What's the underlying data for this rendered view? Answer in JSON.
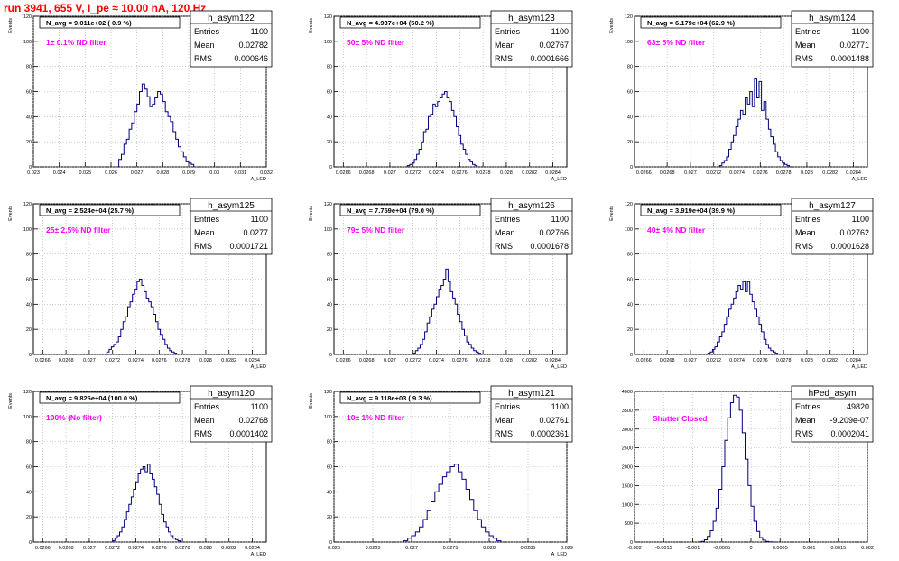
{
  "page": {
    "title": "run 3941,   655 V, I_pe ≈ 10.00 nA, 120 Hz",
    "title_color": "#ff0000",
    "label_color": "#ff00ff",
    "hist_color": "#000080"
  },
  "chart_data": [
    {
      "type": "histogram",
      "name": "h_asym122",
      "stats": {
        "entries_label": "Entries",
        "entries": "1100",
        "mean_label": "Mean",
        "mean": "0.02782",
        "rms_label": "RMS",
        "rms": "0.000646"
      },
      "navg": "N_avg = 9.011e+02 ( 0.9 %)",
      "filter": "1± 0.1% ND filter",
      "ylabel": "Events",
      "xlabel": "A_LED",
      "xlim": [
        0.023,
        0.032
      ],
      "xticks": [
        0.023,
        0.024,
        0.025,
        0.026,
        0.027,
        0.028,
        0.029,
        0.03,
        0.031,
        0.032
      ],
      "xtick_labels": [
        "0.023",
        "0.024",
        "0.025",
        "0.026",
        "0.027",
        "0.028",
        "0.029",
        "0.03",
        "0.031",
        "0.032"
      ],
      "ylim": [
        0,
        120
      ],
      "yticks": [
        0,
        20,
        40,
        60,
        80,
        100,
        120
      ],
      "ytick_labels": [
        "0",
        "20",
        "40",
        "60",
        "80",
        "100",
        "120"
      ],
      "bins": {
        "lo": 0.0262,
        "width": 0.0001,
        "values": [
          0,
          6,
          10,
          18,
          22,
          30,
          35,
          44,
          50,
          60,
          66,
          62,
          56,
          48,
          50,
          55,
          60,
          58,
          52,
          44,
          40,
          36,
          28,
          22,
          16,
          12,
          8,
          4,
          3,
          2
        ]
      }
    },
    {
      "type": "histogram",
      "name": "h_asym123",
      "stats": {
        "entries_label": "Entries",
        "entries": "1100",
        "mean_label": "Mean",
        "mean": "0.02767",
        "rms_label": "RMS",
        "rms": "0.0001666"
      },
      "navg": "N_avg = 4.937e+04 (50.2 %)",
      "filter": "50± 5% ND filter",
      "ylabel": "Events",
      "xlabel": "A_LED",
      "xlim": [
        0.02652,
        0.02852
      ],
      "xticks": [
        0.0266,
        0.0268,
        0.027,
        0.0272,
        0.0274,
        0.0276,
        0.0278,
        0.028,
        0.0282,
        0.0284
      ],
      "xtick_labels": [
        "0.0266",
        "0.0268",
        "0.027",
        "0.0272",
        "0.0274",
        "0.0276",
        "0.0278",
        "0.028",
        "0.0282",
        "0.0284"
      ],
      "ylim": [
        0,
        120
      ],
      "yticks": [
        0,
        20,
        40,
        60,
        80,
        100,
        120
      ],
      "ytick_labels": [
        "0",
        "20",
        "40",
        "60",
        "80",
        "100",
        "120"
      ],
      "bins": {
        "lo": 0.02715,
        "width": 2e-05,
        "values": [
          1,
          2,
          3,
          6,
          10,
          14,
          20,
          28,
          30,
          40,
          42,
          50,
          48,
          52,
          55,
          58,
          60,
          55,
          52,
          45,
          40,
          32,
          25,
          18,
          14,
          10,
          6,
          4,
          2,
          1
        ]
      }
    },
    {
      "type": "histogram",
      "name": "h_asym124",
      "stats": {
        "entries_label": "Entries",
        "entries": "1100",
        "mean_label": "Mean",
        "mean": "0.02771",
        "rms_label": "RMS",
        "rms": "0.0001488"
      },
      "navg": "N_avg = 6.179e+04 (62.9 %)",
      "filter": "63± 5% ND filter",
      "ylabel": "Events",
      "xlabel": "A_LED",
      "xlim": [
        0.02652,
        0.02852
      ],
      "xticks": [
        0.0266,
        0.0268,
        0.027,
        0.0272,
        0.0274,
        0.0276,
        0.0278,
        0.028,
        0.0282,
        0.0284
      ],
      "xtick_labels": [
        "0.0266",
        "0.0268",
        "0.027",
        "0.0272",
        "0.0274",
        "0.0276",
        "0.0278",
        "0.028",
        "0.0282",
        "0.0284"
      ],
      "ylim": [
        0,
        120
      ],
      "yticks": [
        0,
        20,
        40,
        60,
        80,
        100,
        120
      ],
      "ytick_labels": [
        "0",
        "20",
        "40",
        "60",
        "80",
        "100",
        "120"
      ],
      "bins": {
        "lo": 0.02725,
        "width": 2e-05,
        "values": [
          1,
          3,
          5,
          8,
          14,
          20,
          25,
          32,
          38,
          45,
          42,
          55,
          50,
          60,
          48,
          70,
          55,
          68,
          45,
          52,
          38,
          30,
          24,
          18,
          12,
          8,
          5,
          3,
          2,
          1
        ]
      }
    },
    {
      "type": "histogram",
      "name": "h_asym125",
      "stats": {
        "entries_label": "Entries",
        "entries": "1100",
        "mean_label": "Mean",
        "mean": "0.0277",
        "rms_label": "RMS",
        "rms": "0.0001721"
      },
      "navg": "N_avg = 2.524e+04 (25.7 %)",
      "filter": "25± 2.5% ND filter",
      "ylabel": "Events",
      "xlabel": "A_LED",
      "xlim": [
        0.02652,
        0.02852
      ],
      "xticks": [
        0.0266,
        0.0268,
        0.027,
        0.0272,
        0.0274,
        0.0276,
        0.0278,
        0.028,
        0.0282,
        0.0284
      ],
      "xtick_labels": [
        "0.0266",
        "0.0268",
        "0.027",
        "0.0272",
        "0.0274",
        "0.0276",
        "0.0278",
        "0.028",
        "0.0282",
        "0.0284"
      ],
      "ylim": [
        0,
        120
      ],
      "yticks": [
        0,
        20,
        40,
        60,
        80,
        100,
        120
      ],
      "ytick_labels": [
        "0",
        "20",
        "40",
        "60",
        "80",
        "100",
        "120"
      ],
      "bins": {
        "lo": 0.02715,
        "width": 2e-05,
        "values": [
          2,
          4,
          6,
          8,
          10,
          14,
          20,
          26,
          30,
          38,
          42,
          48,
          52,
          58,
          60,
          55,
          50,
          45,
          42,
          38,
          32,
          26,
          20,
          16,
          12,
          8,
          5,
          3,
          2,
          1
        ]
      }
    },
    {
      "type": "histogram",
      "name": "h_asym126",
      "stats": {
        "entries_label": "Entries",
        "entries": "1100",
        "mean_label": "Mean",
        "mean": "0.02766",
        "rms_label": "RMS",
        "rms": "0.0001678"
      },
      "navg": "N_avg = 7.759e+04 (79.0 %)",
      "filter": "79± 5% ND filter",
      "ylabel": "Events",
      "xlabel": "A_LED",
      "xlim": [
        0.02652,
        0.02852
      ],
      "xticks": [
        0.0266,
        0.0268,
        0.027,
        0.0272,
        0.0274,
        0.0276,
        0.0278,
        0.028,
        0.0282,
        0.0284
      ],
      "xtick_labels": [
        "0.0266",
        "0.0268",
        "0.027",
        "0.0272",
        "0.0274",
        "0.0276",
        "0.0278",
        "0.028",
        "0.0282",
        "0.0284"
      ],
      "ylim": [
        0,
        120
      ],
      "yticks": [
        0,
        20,
        40,
        60,
        80,
        100,
        120
      ],
      "ytick_labels": [
        "0",
        "20",
        "40",
        "60",
        "80",
        "100",
        "120"
      ],
      "bins": {
        "lo": 0.0272,
        "width": 2e-05,
        "values": [
          1,
          3,
          5,
          8,
          12,
          18,
          25,
          30,
          36,
          40,
          46,
          52,
          55,
          60,
          68,
          58,
          50,
          45,
          40,
          32,
          26,
          20,
          15,
          10,
          8,
          5,
          3,
          2,
          1,
          0
        ]
      }
    },
    {
      "type": "histogram",
      "name": "h_asym127",
      "stats": {
        "entries_label": "Entries",
        "entries": "1100",
        "mean_label": "Mean",
        "mean": "0.02762",
        "rms_label": "RMS",
        "rms": "0.0001628"
      },
      "navg": "N_avg = 3.919e+04 (39.9 %)",
      "filter": "40± 4% ND filter",
      "ylabel": "Events",
      "xlabel": "A_LED",
      "xlim": [
        0.02652,
        0.02852
      ],
      "xticks": [
        0.0266,
        0.0268,
        0.027,
        0.0272,
        0.0274,
        0.0276,
        0.0278,
        0.028,
        0.0282,
        0.0284
      ],
      "xtick_labels": [
        "0.0266",
        "0.0268",
        "0.027",
        "0.0272",
        "0.0274",
        "0.0276",
        "0.0278",
        "0.028",
        "0.0282",
        "0.0284"
      ],
      "ylim": [
        0,
        120
      ],
      "yticks": [
        0,
        20,
        40,
        60,
        80,
        100,
        120
      ],
      "ytick_labels": [
        "0",
        "20",
        "40",
        "60",
        "80",
        "100",
        "120"
      ],
      "bins": {
        "lo": 0.02715,
        "width": 2e-05,
        "values": [
          1,
          2,
          4,
          6,
          10,
          14,
          18,
          24,
          30,
          36,
          40,
          45,
          50,
          55,
          52,
          58,
          50,
          58,
          48,
          42,
          36,
          30,
          24,
          18,
          12,
          8,
          5,
          3,
          2,
          1
        ]
      }
    },
    {
      "type": "histogram",
      "name": "h_asym120",
      "stats": {
        "entries_label": "Entries",
        "entries": "1100",
        "mean_label": "Mean",
        "mean": "0.02768",
        "rms_label": "RMS",
        "rms": "0.0001402"
      },
      "navg": "N_avg = 9.826e+04 (100.0 %)",
      "filter": "100% (No filter)",
      "ylabel": "Events",
      "xlabel": "A_LED",
      "xlim": [
        0.02652,
        0.02852
      ],
      "xticks": [
        0.0266,
        0.0268,
        0.027,
        0.0272,
        0.0274,
        0.0276,
        0.0278,
        0.028,
        0.0282,
        0.0284
      ],
      "xtick_labels": [
        "0.0266",
        "0.0268",
        "0.027",
        "0.0272",
        "0.0274",
        "0.0276",
        "0.0278",
        "0.028",
        "0.0282",
        "0.0284"
      ],
      "ylim": [
        0,
        120
      ],
      "yticks": [
        0,
        20,
        40,
        60,
        80,
        100,
        120
      ],
      "ytick_labels": [
        "0",
        "20",
        "40",
        "60",
        "80",
        "100",
        "120"
      ],
      "bins": {
        "lo": 0.0272,
        "width": 2e-05,
        "values": [
          1,
          3,
          5,
          8,
          12,
          18,
          24,
          30,
          36,
          42,
          48,
          55,
          58,
          60,
          56,
          62,
          55,
          50,
          44,
          38,
          30,
          22,
          16,
          12,
          8,
          5,
          3,
          2,
          1,
          0
        ]
      }
    },
    {
      "type": "histogram",
      "name": "h_asym121",
      "stats": {
        "entries_label": "Entries",
        "entries": "1100",
        "mean_label": "Mean",
        "mean": "0.02761",
        "rms_label": "RMS",
        "rms": "0.0002361"
      },
      "navg": "N_avg = 9.118e+03 ( 9.3 %)",
      "filter": "10± 1% ND filter",
      "ylabel": "Events",
      "xlabel": "A_LED",
      "xlim": [
        0.026,
        0.029
      ],
      "xticks": [
        0.026,
        0.0265,
        0.027,
        0.0275,
        0.028,
        0.0285,
        0.029
      ],
      "xtick_labels": [
        "0.026",
        "0.0265",
        "0.027",
        "0.0275",
        "0.028",
        "0.0285",
        "0.029"
      ],
      "ylim": [
        0,
        120
      ],
      "yticks": [
        0,
        20,
        40,
        60,
        80,
        100,
        120
      ],
      "ytick_labels": [
        "0",
        "20",
        "40",
        "60",
        "80",
        "100",
        "120"
      ],
      "bins": {
        "lo": 0.0269,
        "width": 5e-05,
        "values": [
          1,
          3,
          5,
          8,
          12,
          18,
          25,
          32,
          40,
          46,
          52,
          56,
          60,
          62,
          56,
          50,
          42,
          34,
          25,
          18,
          12,
          8,
          5,
          3,
          1
        ]
      }
    },
    {
      "type": "histogram",
      "name": "hPed_asym",
      "stats": {
        "entries_label": "Entries",
        "entries": "49820",
        "mean_label": "Mean",
        "mean": "-9.209e-07",
        "rms_label": "RMS",
        "rms": "0.0002041"
      },
      "navg": "",
      "filter": "Shutter Closed",
      "ylabel": "",
      "xlabel": "",
      "xlim": [
        -0.002,
        0.002
      ],
      "xticks": [
        -0.002,
        -0.0015,
        -0.001,
        -0.0005,
        0,
        0.0005,
        0.001,
        0.0015,
        0.002
      ],
      "xtick_labels": [
        "-0.002",
        "-0.0015",
        "-0.001",
        "-0.0005",
        "0",
        "0.0005",
        "0.001",
        "0.0015",
        "0.002"
      ],
      "ylim": [
        0,
        4000
      ],
      "yticks": [
        0,
        500,
        1000,
        1500,
        2000,
        2500,
        3000,
        3500,
        4000
      ],
      "ytick_labels": [
        "0",
        "500",
        "1000",
        "1500",
        "2000",
        "2500",
        "3000",
        "3500",
        "4000"
      ],
      "bins": {
        "lo": -0.0009,
        "width": 5e-05,
        "values": [
          5,
          20,
          60,
          150,
          300,
          550,
          900,
          1400,
          2000,
          2700,
          3300,
          3700,
          3900,
          3850,
          3500,
          2900,
          2200,
          1500,
          950,
          550,
          280,
          120,
          50,
          20,
          8,
          3,
          1
        ]
      }
    }
  ]
}
